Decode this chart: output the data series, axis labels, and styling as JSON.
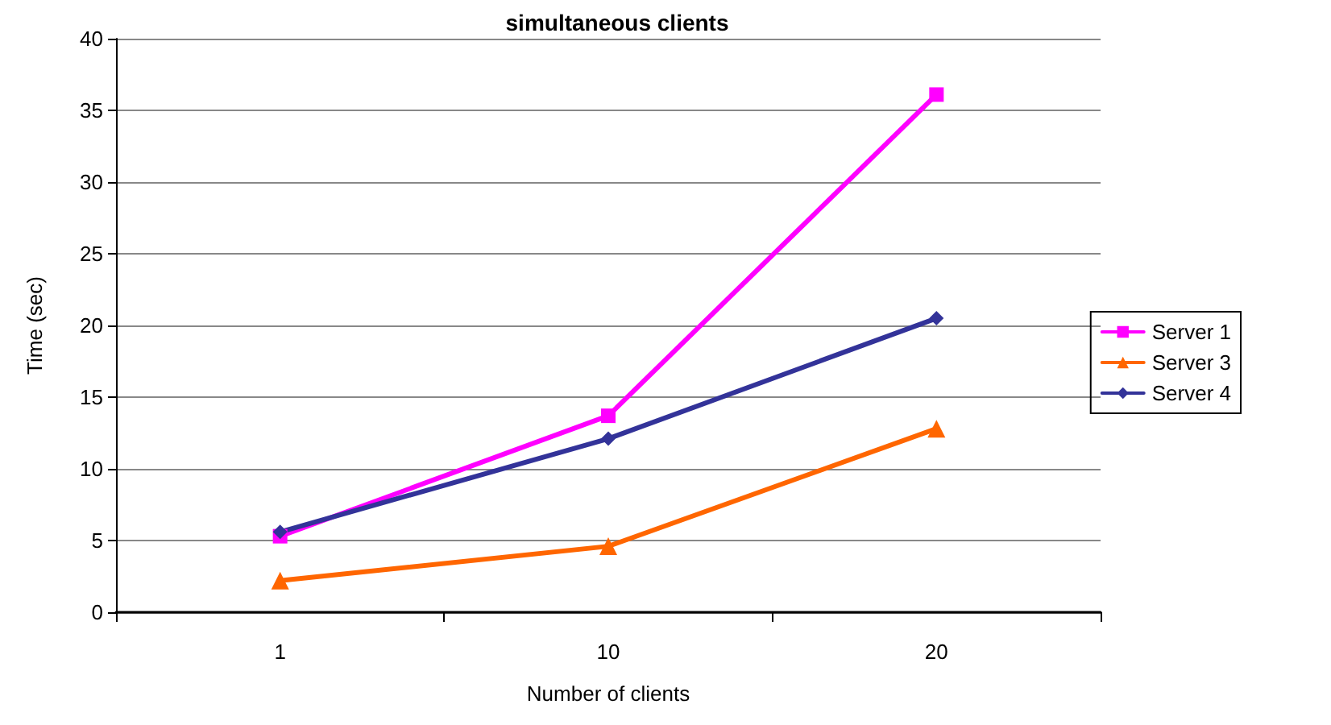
{
  "chart_data": {
    "type": "line",
    "title": "simultaneous clients",
    "xlabel": "Number of clients",
    "ylabel": "Time (sec)",
    "categories": [
      "1",
      "10",
      "20"
    ],
    "series": [
      {
        "name": "Server 1",
        "color": "#ff00ff",
        "marker": "square",
        "values": [
          5.3,
          13.7,
          36.1
        ]
      },
      {
        "name": "Server 3",
        "color": "#ff6600",
        "marker": "triangle",
        "values": [
          2.2,
          4.6,
          12.8
        ]
      },
      {
        "name": "Server 4",
        "color": "#333399",
        "marker": "diamond",
        "values": [
          5.6,
          12.1,
          20.5
        ]
      }
    ],
    "ylim": [
      0,
      40
    ],
    "yticks": [
      0,
      5,
      10,
      15,
      20,
      25,
      30,
      35,
      40
    ],
    "grid": "y",
    "legend": "right",
    "line_style": "solid"
  }
}
